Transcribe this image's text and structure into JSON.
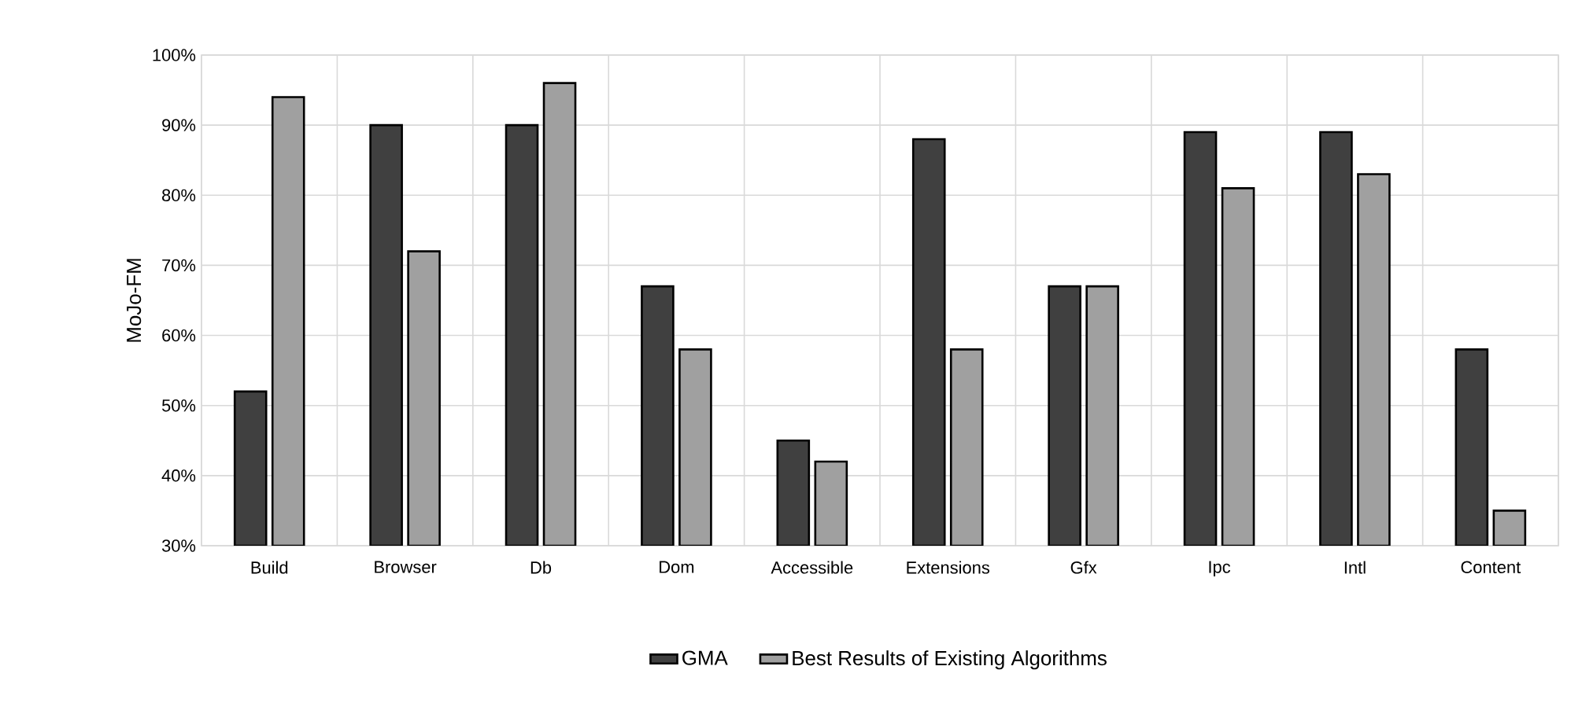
{
  "chart_data": {
    "type": "bar",
    "ylabel": "MoJo-FM",
    "categories": [
      "Build",
      "Browser",
      "Db",
      "Dom",
      "Accessible",
      "Extensions",
      "Gfx",
      "Ipc",
      "Intl",
      "Content"
    ],
    "series": [
      {
        "name": "GMA",
        "color": "#404040",
        "values": [
          52,
          90,
          90,
          67,
          45,
          88,
          67,
          89,
          89,
          58
        ]
      },
      {
        "name": "Best Results of Existing Algorithms",
        "color": "#a0a0a0",
        "values": [
          94,
          72,
          96,
          58,
          42,
          58,
          67,
          81,
          83,
          35
        ]
      }
    ],
    "ylim": [
      30,
      100
    ],
    "yticks": [
      {
        "value": 30,
        "label": "30%"
      },
      {
        "value": 40,
        "label": "40%"
      },
      {
        "value": 50,
        "label": "50%"
      },
      {
        "value": 60,
        "label": "60%"
      },
      {
        "value": 70,
        "label": "70%"
      },
      {
        "value": 80,
        "label": "80%"
      },
      {
        "value": 90,
        "label": "90%"
      },
      {
        "value": 100,
        "label": "100%"
      }
    ],
    "grid": true,
    "legend": "bottom"
  }
}
